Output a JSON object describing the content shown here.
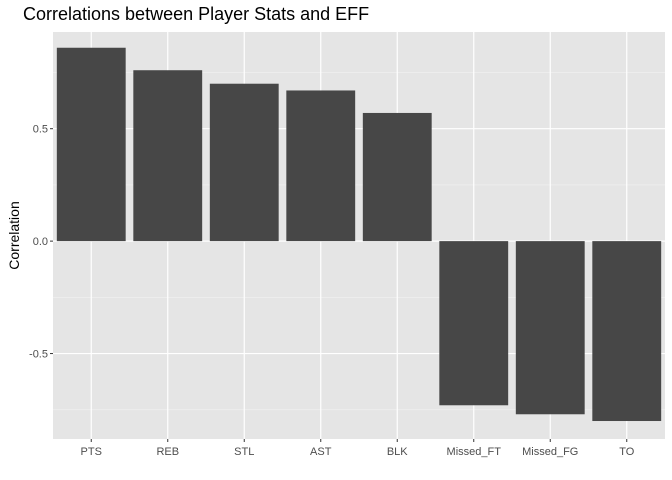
{
  "chart_data": {
    "type": "bar",
    "title": "Correlations between Player Stats and EFF",
    "xlabel": "",
    "ylabel": "Correlation",
    "categories": [
      "PTS",
      "REB",
      "STL",
      "AST",
      "BLK",
      "Missed_FT",
      "Missed_FG",
      "TO"
    ],
    "values": [
      0.86,
      0.76,
      0.7,
      0.67,
      0.57,
      -0.73,
      -0.77,
      -0.8
    ],
    "ylim": [
      -0.88,
      0.93
    ],
    "yticks": [
      -0.5,
      0.0,
      0.5
    ],
    "ytick_labels": [
      "-0.5",
      "0.0",
      "0.5"
    ],
    "grid": true,
    "legend": "none",
    "colors": {
      "panel_background": "#e5e5e5",
      "grid_major": "#ffffff",
      "bar_fill": "#474747",
      "tick_text": "#4d4d4d"
    }
  }
}
